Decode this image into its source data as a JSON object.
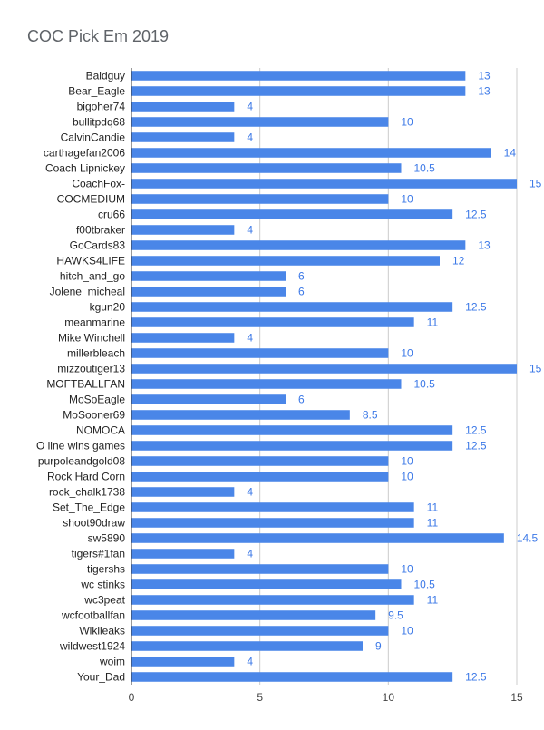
{
  "chart_data": {
    "type": "bar",
    "orientation": "horizontal",
    "title": "COC Pick Em 2019",
    "xlabel": "",
    "ylabel": "",
    "xlim": [
      0,
      15
    ],
    "xticks": [
      0,
      5,
      10,
      15
    ],
    "grid": true,
    "bar_color": "#4a86e8",
    "label_color": "#3b78e7",
    "categories": [
      "Baldguy",
      "Bear_Eagle",
      "bigoher74",
      "bullitpdq68",
      "CalvinCandie",
      "carthagefan2006",
      "Coach Lipnickey",
      "CoachFox-",
      "COCMEDIUM",
      "cru66",
      "f00tbraker",
      "GoCards83",
      "HAWKS4LIFE",
      "hitch_and_go",
      "Jolene_micheal",
      "kgun20",
      "meanmarine",
      "Mike Winchell",
      "millerbleach",
      "mizzoutiger13",
      "MOFTBALLFAN",
      "MoSoEagle",
      "MoSooner69",
      "NOMOCA",
      "O line wins games",
      "purpoleandgold08",
      "Rock Hard Corn",
      "rock_chalk1738",
      "Set_The_Edge",
      "shoot90draw",
      "sw5890",
      "tigers#1fan",
      "tigershs",
      "wc stinks",
      "wc3peat",
      "wcfootballfan",
      "Wikileaks",
      "wildwest1924",
      "woim",
      "Your_Dad"
    ],
    "values": [
      13,
      13,
      4,
      10,
      4,
      14,
      10.5,
      15,
      10,
      12.5,
      4,
      13,
      12,
      6,
      6,
      12.5,
      11,
      4,
      10,
      15,
      10.5,
      6,
      8.5,
      12.5,
      12.5,
      10,
      10,
      4,
      11,
      11,
      14.5,
      4,
      10,
      10.5,
      11,
      9.5,
      10,
      9,
      4,
      12.5
    ]
  }
}
